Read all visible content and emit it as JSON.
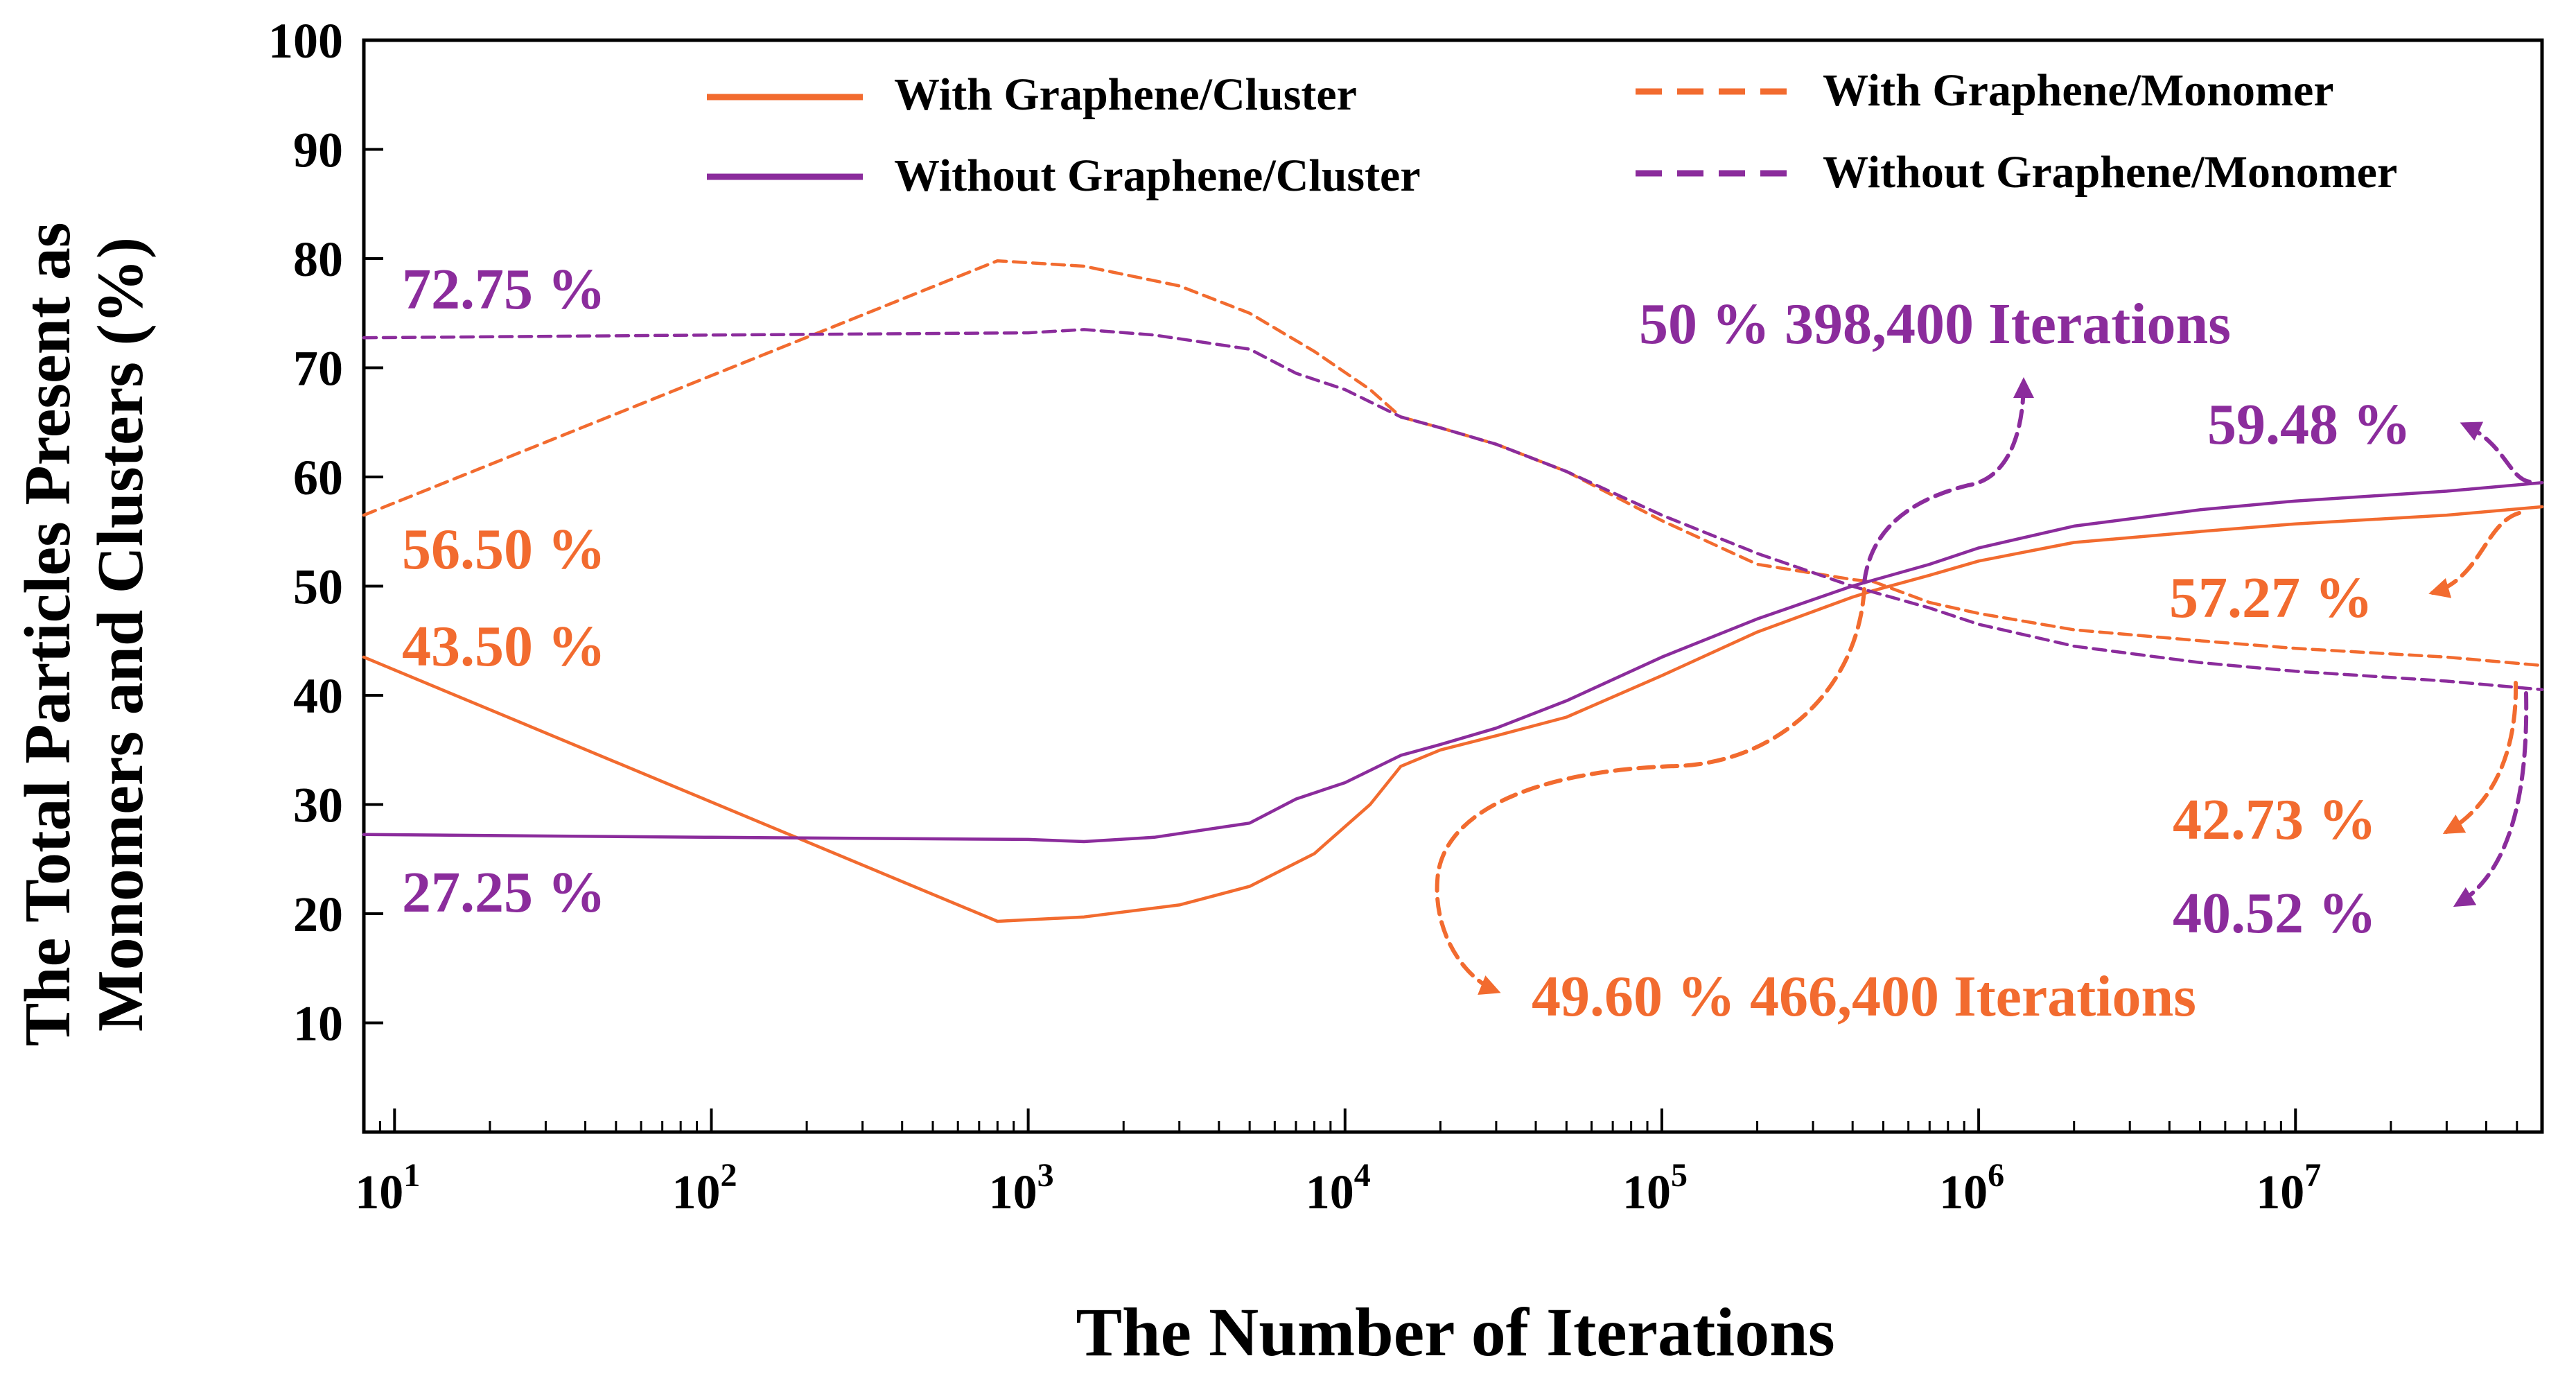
{
  "colors": {
    "orange": "#F26B2F",
    "purple": "#8B2C9C",
    "axis": "#000000"
  },
  "chart_data": {
    "type": "line",
    "title": "",
    "xlabel": "The Number of Iterations",
    "ylabel_line1": "The Total Particles Present as",
    "ylabel_line2": "Monomers and Clusters (%)",
    "xscale": "log",
    "xlim": [
      8,
      60000000
    ],
    "ylim": [
      0,
      100
    ],
    "x_ticks": [
      {
        "value": 10,
        "base": "10",
        "exp": "1"
      },
      {
        "value": 100,
        "base": "10",
        "exp": "2"
      },
      {
        "value": 1000,
        "base": "10",
        "exp": "3"
      },
      {
        "value": 10000,
        "base": "10",
        "exp": "4"
      },
      {
        "value": 100000,
        "base": "10",
        "exp": "5"
      },
      {
        "value": 1000000,
        "base": "10",
        "exp": "6"
      },
      {
        "value": 10000000,
        "base": "10",
        "exp": "7"
      }
    ],
    "y_ticks": [
      "10",
      "20",
      "30",
      "40",
      "50",
      "60",
      "70",
      "80",
      "90",
      "100"
    ],
    "legend_position": "top",
    "series": [
      {
        "name": "With Graphene/Cluster",
        "color": "orange",
        "dash": "solid",
        "x": [
          8,
          800,
          1500,
          3000,
          5000,
          8000,
          12000,
          15000,
          20000,
          30000,
          50000,
          100000,
          200000,
          400000,
          466400,
          700000,
          1000000,
          2000000,
          5000000,
          10000000,
          30000000,
          60000000
        ],
        "y": [
          43.5,
          19.3,
          19.7,
          20.8,
          22.5,
          25.5,
          30.0,
          33.5,
          35.0,
          36.3,
          38.0,
          41.8,
          45.8,
          49.0,
          49.6,
          51.0,
          52.3,
          54.0,
          55.0,
          55.7,
          56.5,
          57.27
        ]
      },
      {
        "name": "With Graphene/Monomer",
        "color": "orange",
        "dash": "dashed",
        "x": [
          8,
          800,
          1500,
          3000,
          5000,
          8000,
          12000,
          15000,
          20000,
          30000,
          50000,
          100000,
          200000,
          400000,
          466400,
          700000,
          1000000,
          2000000,
          5000000,
          10000000,
          30000000,
          60000000
        ],
        "y": [
          56.5,
          79.8,
          79.3,
          77.5,
          75.0,
          71.5,
          68.0,
          65.5,
          64.5,
          63.0,
          60.5,
          56.0,
          52.0,
          50.6,
          50.4,
          48.5,
          47.5,
          46.0,
          45.0,
          44.3,
          43.5,
          42.73
        ]
      },
      {
        "name": "Without Graphene/Cluster",
        "color": "purple",
        "dash": "solid",
        "x": [
          8,
          100,
          1000,
          1500,
          2500,
          5000,
          7000,
          10000,
          15000,
          20000,
          30000,
          50000,
          100000,
          200000,
          398400,
          700000,
          1000000,
          2000000,
          5000000,
          10000000,
          30000000,
          60000000
        ],
        "y": [
          27.25,
          27.0,
          26.8,
          26.6,
          27.0,
          28.3,
          30.5,
          32.0,
          34.5,
          35.5,
          37.0,
          39.5,
          43.5,
          47.0,
          50.0,
          52.0,
          53.5,
          55.5,
          57.0,
          57.8,
          58.7,
          59.48
        ]
      },
      {
        "name": "Without Graphene/Monomer",
        "color": "purple",
        "dash": "dashed",
        "x": [
          8,
          100,
          1000,
          1500,
          2500,
          5000,
          7000,
          10000,
          15000,
          20000,
          30000,
          50000,
          100000,
          200000,
          398400,
          700000,
          1000000,
          2000000,
          5000000,
          10000000,
          30000000,
          60000000
        ],
        "y": [
          72.75,
          73.0,
          73.2,
          73.5,
          73.0,
          71.7,
          69.5,
          68.0,
          65.5,
          64.5,
          63.0,
          60.5,
          56.5,
          53.0,
          50.0,
          48.0,
          46.5,
          44.5,
          43.0,
          42.2,
          41.3,
          40.52
        ]
      }
    ],
    "annotations": [
      {
        "text": "72.75 %",
        "color": "purple"
      },
      {
        "text": "56.50 %",
        "color": "orange"
      },
      {
        "text": "43.50 %",
        "color": "orange"
      },
      {
        "text": "27.25 %",
        "color": "purple"
      },
      {
        "text": "50 % 398,400 Iterations",
        "color": "purple"
      },
      {
        "text": "59.48 %",
        "color": "purple"
      },
      {
        "text": "57.27 %",
        "color": "orange"
      },
      {
        "text": "42.73 %",
        "color": "orange"
      },
      {
        "text": "40.52 %",
        "color": "purple"
      },
      {
        "text": "49.60 % 466,400 Iterations",
        "color": "orange"
      }
    ]
  }
}
